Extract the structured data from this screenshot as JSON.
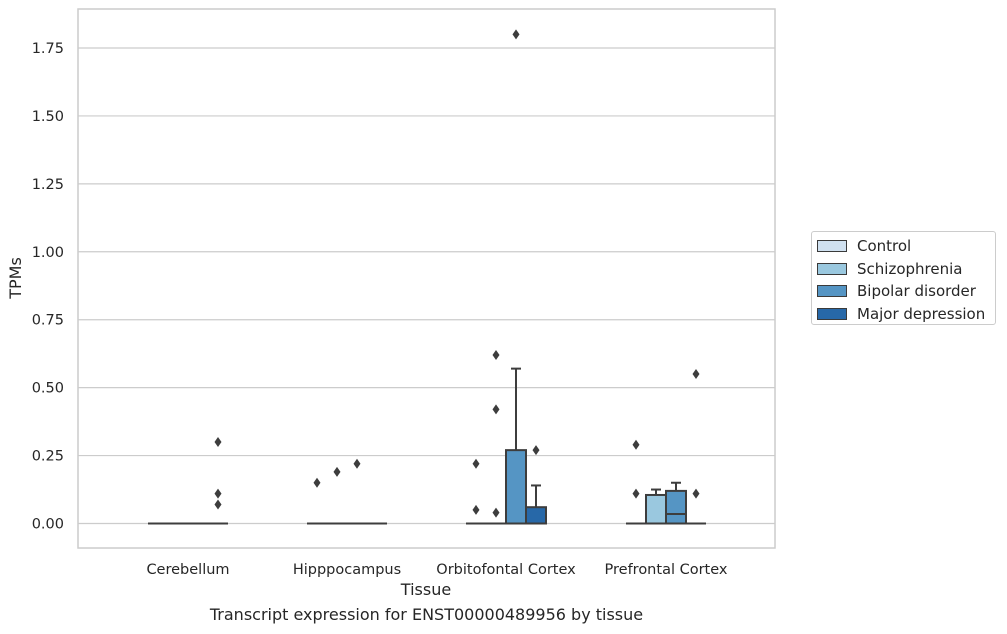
{
  "chart_data": {
    "type": "box",
    "categories": [
      "Cerebellum",
      "Hipppocampus",
      "Orbitofontal Cortex",
      "Prefrontal Cortex"
    ],
    "xlabel": "Tissue",
    "ylabel": "TPMs",
    "ylim": [
      -0.09,
      1.89
    ],
    "yticks": [
      0.0,
      0.25,
      0.5,
      0.75,
      1.0,
      1.25,
      1.5,
      1.75
    ],
    "yticklabels": [
      "0.00",
      "0.25",
      "0.50",
      "0.75",
      "1.00",
      "1.25",
      "1.50",
      "1.75"
    ],
    "grid": true,
    "legend_position": "right",
    "series": [
      {
        "name": "Control",
        "color": "#d0e1f0"
      },
      {
        "name": "Schizophrenia",
        "color": "#9ac8df"
      },
      {
        "name": "Bipolar disorder",
        "color": "#5595c4"
      },
      {
        "name": "Major depression",
        "color": "#2768a8"
      }
    ],
    "boxes": [
      {
        "category": "Cerebellum",
        "series": "Control",
        "q1": 0,
        "median": 0,
        "q3": 0,
        "whisker_low": 0,
        "whisker_high": 0,
        "outliers": []
      },
      {
        "category": "Cerebellum",
        "series": "Schizophrenia",
        "q1": 0,
        "median": 0,
        "q3": 0,
        "whisker_low": 0,
        "whisker_high": 0,
        "outliers": []
      },
      {
        "category": "Cerebellum",
        "series": "Bipolar disorder",
        "q1": 0,
        "median": 0,
        "q3": 0,
        "whisker_low": 0,
        "whisker_high": 0,
        "outliers": []
      },
      {
        "category": "Cerebellum",
        "series": "Major depression",
        "q1": 0,
        "median": 0,
        "q3": 0,
        "whisker_low": 0,
        "whisker_high": 0,
        "outliers": [
          0.3,
          0.11,
          0.07
        ]
      },
      {
        "category": "Hipppocampus",
        "series": "Control",
        "q1": 0,
        "median": 0,
        "q3": 0,
        "whisker_low": 0,
        "whisker_high": 0,
        "outliers": [
          0.15
        ]
      },
      {
        "category": "Hipppocampus",
        "series": "Schizophrenia",
        "q1": 0,
        "median": 0,
        "q3": 0,
        "whisker_low": 0,
        "whisker_high": 0,
        "outliers": [
          0.19
        ]
      },
      {
        "category": "Hipppocampus",
        "series": "Bipolar disorder",
        "q1": 0,
        "median": 0,
        "q3": 0,
        "whisker_low": 0,
        "whisker_high": 0,
        "outliers": [
          0.22
        ]
      },
      {
        "category": "Hipppocampus",
        "series": "Major depression",
        "q1": 0,
        "median": 0,
        "q3": 0,
        "whisker_low": 0,
        "whisker_high": 0,
        "outliers": []
      },
      {
        "category": "Orbitofontal Cortex",
        "series": "Control",
        "q1": 0,
        "median": 0,
        "q3": 0,
        "whisker_low": 0,
        "whisker_high": 0,
        "outliers": [
          0.22,
          0.05
        ]
      },
      {
        "category": "Orbitofontal Cortex",
        "series": "Schizophrenia",
        "q1": 0,
        "median": 0,
        "q3": 0,
        "whisker_low": 0,
        "whisker_high": 0,
        "outliers": [
          0.62,
          0.42,
          0.04
        ]
      },
      {
        "category": "Orbitofontal Cortex",
        "series": "Bipolar disorder",
        "q1": 0,
        "median": 0,
        "q3": 0.27,
        "whisker_low": 0,
        "whisker_high": 0.57,
        "outliers": [
          1.8
        ]
      },
      {
        "category": "Orbitofontal Cortex",
        "series": "Major depression",
        "q1": 0,
        "median": 0,
        "q3": 0.06,
        "whisker_low": 0,
        "whisker_high": 0.14,
        "outliers": [
          0.27
        ]
      },
      {
        "category": "Prefrontal Cortex",
        "series": "Control",
        "q1": 0,
        "median": 0,
        "q3": 0,
        "whisker_low": 0,
        "whisker_high": 0,
        "outliers": [
          0.29,
          0.11
        ]
      },
      {
        "category": "Prefrontal Cortex",
        "series": "Schizophrenia",
        "q1": 0,
        "median": 0,
        "q3": 0.105,
        "whisker_low": 0,
        "whisker_high": 0.125,
        "outliers": []
      },
      {
        "category": "Prefrontal Cortex",
        "series": "Bipolar disorder",
        "q1": 0,
        "median": 0.035,
        "q3": 0.12,
        "whisker_low": 0,
        "whisker_high": 0.15,
        "outliers": []
      },
      {
        "category": "Prefrontal Cortex",
        "series": "Major depression",
        "q1": 0,
        "median": 0,
        "q3": 0,
        "whisker_low": 0,
        "whisker_high": 0,
        "outliers": [
          0.55,
          0.11
        ]
      }
    ]
  },
  "caption": "Transcript expression for ENST00000489956 by tissue"
}
